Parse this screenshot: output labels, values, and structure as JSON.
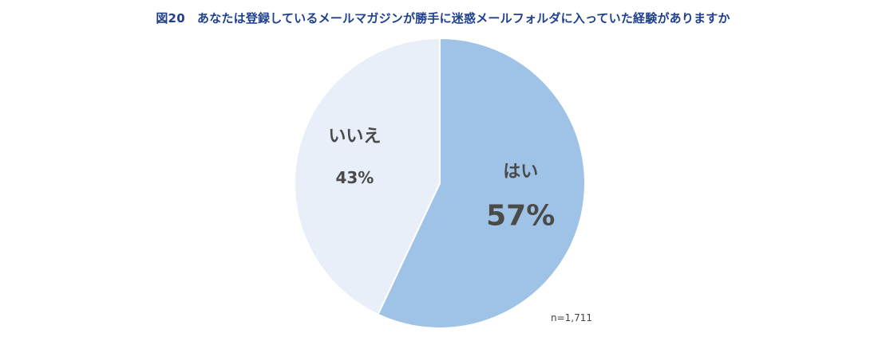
{
  "chart_data": {
    "type": "pie",
    "title": "図20　あなたは登録しているメールマガジンが勝手に迷惑メールフォルダに入っていた経験がありますか",
    "slices": [
      {
        "label": "はい",
        "value": 57,
        "value_label": "57%",
        "color": "#9fc3e7"
      },
      {
        "label": "いいえ",
        "value": 43,
        "value_label": "43%",
        "color": "#e8eff9"
      }
    ],
    "start_angle_deg": 0,
    "direction": "clockwise",
    "note": "n=1,711"
  }
}
